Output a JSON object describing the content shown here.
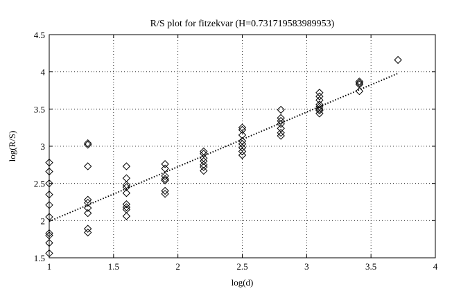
{
  "chart_data": {
    "type": "scatter",
    "title": "R/S plot for fitzekvar (H=0.731719583989953)",
    "xlabel": "log(d)",
    "ylabel": "log(R/S)",
    "xlim": [
      1,
      4
    ],
    "ylim": [
      1.5,
      4.5
    ],
    "xticks": [
      1,
      1.5,
      2,
      2.5,
      3,
      3.5,
      4
    ],
    "yticks": [
      1.5,
      2,
      2.5,
      3,
      3.5,
      4,
      4.5
    ],
    "xtick_labels": [
      "1",
      "1.5",
      "2",
      "2.5",
      "3",
      "3.5",
      "4"
    ],
    "ytick_labels": [
      "1.5",
      "2",
      "2.5",
      "3",
      "3.5",
      "4",
      "4.5"
    ],
    "grid": true,
    "marker": "diamond",
    "points": [
      {
        "x": 1.0,
        "y": 2.78
      },
      {
        "x": 1.0,
        "y": 2.66
      },
      {
        "x": 1.0,
        "y": 2.5
      },
      {
        "x": 1.0,
        "y": 2.35
      },
      {
        "x": 1.0,
        "y": 2.21
      },
      {
        "x": 1.0,
        "y": 2.05
      },
      {
        "x": 1.0,
        "y": 1.83
      },
      {
        "x": 1.0,
        "y": 1.8
      },
      {
        "x": 1.0,
        "y": 1.7
      },
      {
        "x": 1.0,
        "y": 1.56
      },
      {
        "x": 1.3,
        "y": 3.04
      },
      {
        "x": 1.3,
        "y": 3.02
      },
      {
        "x": 1.3,
        "y": 2.73
      },
      {
        "x": 1.3,
        "y": 2.28
      },
      {
        "x": 1.3,
        "y": 2.24
      },
      {
        "x": 1.3,
        "y": 2.17
      },
      {
        "x": 1.3,
        "y": 2.1
      },
      {
        "x": 1.3,
        "y": 1.89
      },
      {
        "x": 1.3,
        "y": 1.84
      },
      {
        "x": 1.6,
        "y": 2.73
      },
      {
        "x": 1.6,
        "y": 2.57
      },
      {
        "x": 1.6,
        "y": 2.48
      },
      {
        "x": 1.6,
        "y": 2.45
      },
      {
        "x": 1.6,
        "y": 2.37
      },
      {
        "x": 1.6,
        "y": 2.22
      },
      {
        "x": 1.6,
        "y": 2.18
      },
      {
        "x": 1.6,
        "y": 2.15
      },
      {
        "x": 1.6,
        "y": 2.06
      },
      {
        "x": 1.9,
        "y": 2.76
      },
      {
        "x": 1.9,
        "y": 2.7
      },
      {
        "x": 1.9,
        "y": 2.6
      },
      {
        "x": 1.9,
        "y": 2.56
      },
      {
        "x": 1.9,
        "y": 2.54
      },
      {
        "x": 1.9,
        "y": 2.4
      },
      {
        "x": 1.9,
        "y": 2.36
      },
      {
        "x": 2.2,
        "y": 2.93
      },
      {
        "x": 2.2,
        "y": 2.9
      },
      {
        "x": 2.2,
        "y": 2.84
      },
      {
        "x": 2.2,
        "y": 2.8
      },
      {
        "x": 2.2,
        "y": 2.75
      },
      {
        "x": 2.2,
        "y": 2.72
      },
      {
        "x": 2.2,
        "y": 2.67
      },
      {
        "x": 2.5,
        "y": 3.25
      },
      {
        "x": 2.5,
        "y": 3.22
      },
      {
        "x": 2.5,
        "y": 3.15
      },
      {
        "x": 2.5,
        "y": 3.07
      },
      {
        "x": 2.5,
        "y": 3.03
      },
      {
        "x": 2.5,
        "y": 2.98
      },
      {
        "x": 2.5,
        "y": 2.93
      },
      {
        "x": 2.5,
        "y": 2.88
      },
      {
        "x": 2.8,
        "y": 3.49
      },
      {
        "x": 2.8,
        "y": 3.38
      },
      {
        "x": 2.8,
        "y": 3.34
      },
      {
        "x": 2.8,
        "y": 3.3
      },
      {
        "x": 2.8,
        "y": 3.24
      },
      {
        "x": 2.8,
        "y": 3.18
      },
      {
        "x": 2.8,
        "y": 3.14
      },
      {
        "x": 3.1,
        "y": 3.72
      },
      {
        "x": 3.1,
        "y": 3.67
      },
      {
        "x": 3.1,
        "y": 3.62
      },
      {
        "x": 3.1,
        "y": 3.56
      },
      {
        "x": 3.1,
        "y": 3.53
      },
      {
        "x": 3.1,
        "y": 3.5
      },
      {
        "x": 3.1,
        "y": 3.48
      },
      {
        "x": 3.1,
        "y": 3.44
      },
      {
        "x": 3.41,
        "y": 3.87
      },
      {
        "x": 3.41,
        "y": 3.85
      },
      {
        "x": 3.41,
        "y": 3.83
      },
      {
        "x": 3.41,
        "y": 3.74
      },
      {
        "x": 3.71,
        "y": 4.16
      }
    ],
    "fit_line": {
      "x": [
        1.0,
        3.71
      ],
      "y": [
        1.99,
        3.98
      ],
      "style": "dotted"
    }
  }
}
